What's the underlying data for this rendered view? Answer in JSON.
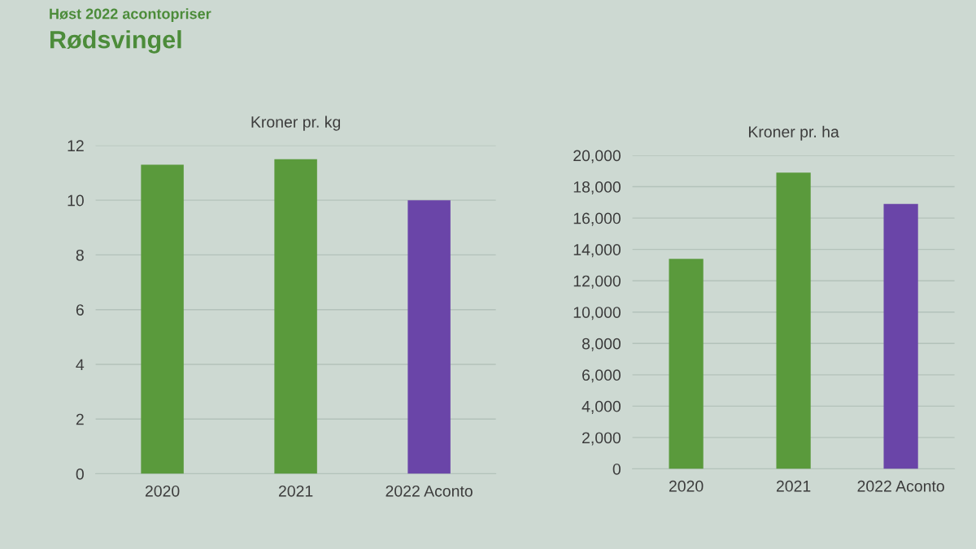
{
  "chart_data": [
    {
      "type": "other",
      "title": "Rødsvingel",
      "subtitle": "Høst 2022 acontopriser"
    },
    {
      "type": "bar",
      "title": "Kroner pr. kg",
      "categories": [
        "2020",
        "2021",
        "2022 Aconto"
      ],
      "values": [
        11.3,
        11.5,
        10.0
      ],
      "colors": [
        "#5a9a3c",
        "#5a9a3c",
        "#6a45a8"
      ],
      "ylim": [
        0,
        12
      ],
      "yticks": [
        0,
        2,
        4,
        6,
        8,
        10,
        12
      ],
      "grid": "y"
    },
    {
      "type": "bar",
      "title": "Kroner pr. ha",
      "categories": [
        "2020",
        "2021",
        "2022 Aconto"
      ],
      "values": [
        13400,
        18900,
        16900
      ],
      "colors": [
        "#5a9a3c",
        "#5a9a3c",
        "#6a45a8"
      ],
      "ylim": [
        0,
        20000
      ],
      "yticks": [
        0,
        {
          "value": 2000,
          "label": "2,000"
        },
        {
          "value": 4000,
          "label": "4,000"
        },
        {
          "value": 6000,
          "label": "6,000"
        },
        {
          "value": 8000,
          "label": "8,000"
        },
        {
          "value": 10000,
          "label": "10,000"
        },
        {
          "value": 12000,
          "label": "12,000"
        },
        {
          "value": 14000,
          "label": "14,000"
        },
        {
          "value": 16000,
          "label": "16,000"
        },
        {
          "value": 18000,
          "label": "18,000"
        },
        {
          "value": 20000,
          "label": "20,000"
        }
      ],
      "grid": "y"
    }
  ]
}
